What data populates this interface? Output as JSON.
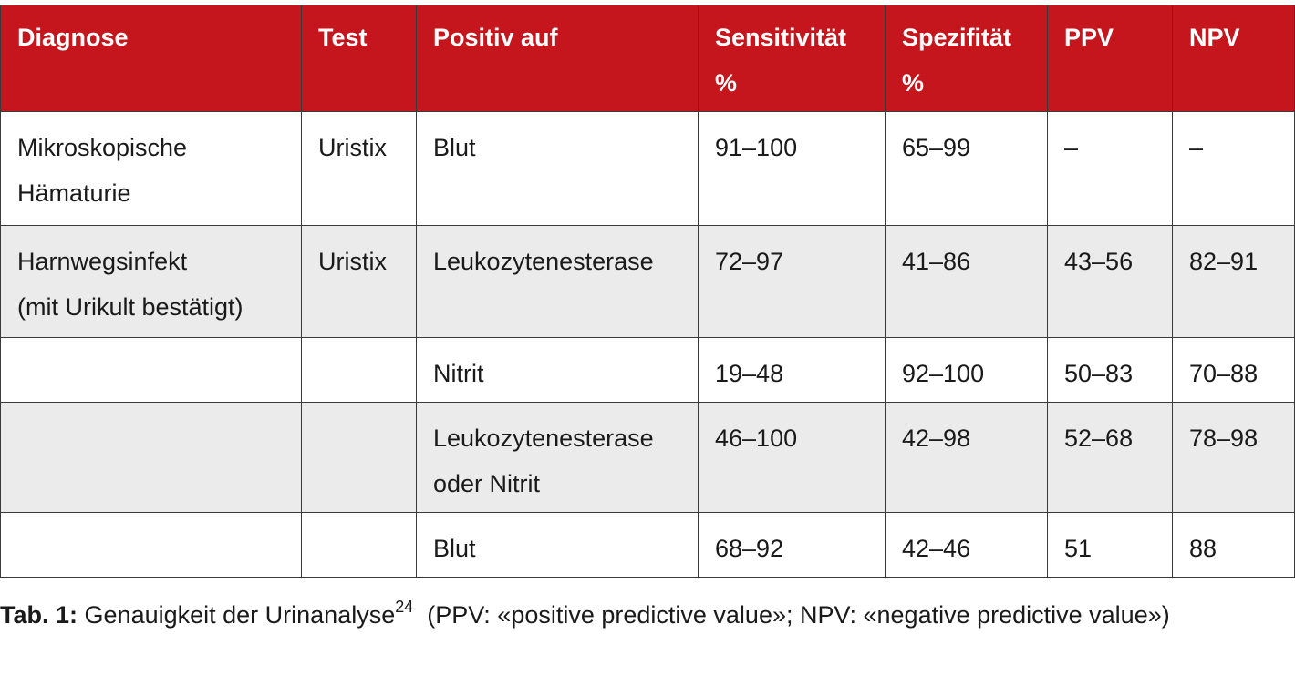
{
  "table": {
    "header": [
      [
        "Diagnose"
      ],
      [
        "Test"
      ],
      [
        "Positiv auf"
      ],
      [
        "Sensitivität",
        "%"
      ],
      [
        "Spezifität",
        "%"
      ],
      [
        "PPV"
      ],
      [
        "NPV"
      ]
    ],
    "rows": [
      [
        [
          "Mikroskopische",
          "Hämaturie"
        ],
        [
          "Uristix"
        ],
        [
          "Blut"
        ],
        [
          "91–100"
        ],
        [
          "65–99"
        ],
        [
          "–"
        ],
        [
          "–"
        ]
      ],
      [
        [
          "Harnwegsinfekt",
          "(mit Urikult bestätigt)"
        ],
        [
          "Uristix"
        ],
        [
          "Leukozytenesterase"
        ],
        [
          "72–97"
        ],
        [
          "41–86"
        ],
        [
          "43–56"
        ],
        [
          "82–91"
        ]
      ],
      [
        null,
        null,
        [
          "Nitrit"
        ],
        [
          "19–48"
        ],
        [
          "92–100"
        ],
        [
          "50–83"
        ],
        [
          "70–88"
        ]
      ],
      [
        null,
        null,
        [
          "Leukozytenesterase",
          "oder Nitrit"
        ],
        [
          "46–100"
        ],
        [
          "42–98"
        ],
        [
          "52–68"
        ],
        [
          "78–98"
        ]
      ],
      [
        null,
        null,
        [
          "Blut"
        ],
        [
          "68–92"
        ],
        [
          "42–46"
        ],
        [
          "51"
        ],
        [
          "88"
        ]
      ]
    ]
  },
  "caption": {
    "label": "Tab. 1:",
    "text": "Genauigkeit der Urinanalyse",
    "ref": "24",
    "note": "(PPV: «positive predictive value»; NPV: «negative predictive value»)"
  }
}
